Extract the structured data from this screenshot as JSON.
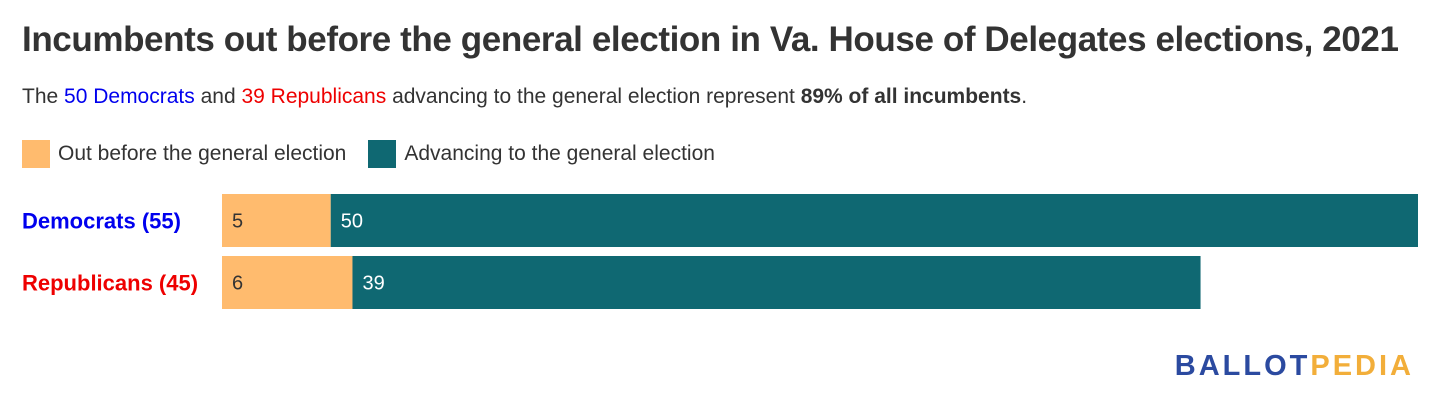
{
  "title": "Incumbents out before the general election in Va. House of Delegates elections, 2021",
  "subtitle": {
    "part1": "The ",
    "dem_text": "50 Democrats",
    "part2": " and ",
    "rep_text": "39 Republicans",
    "part3": " advancing to the general election represent ",
    "bold_text": "89% of all incumbents",
    "part4": "."
  },
  "colors": {
    "out": "#FFBB6E",
    "advancing": "#0F6872",
    "democrat": "#0000EE",
    "republican": "#EE0000",
    "logo_primary": "#2B4AA0",
    "logo_accent": "#F2AE3A"
  },
  "logo": {
    "part1": "BALLOT",
    "part2": "PEDIA"
  },
  "chart_data": {
    "type": "bar",
    "orientation": "horizontal",
    "stacked": true,
    "categories": [
      "Democrats (55)",
      "Republicans (45)"
    ],
    "category_colors": [
      "#0000EE",
      "#EE0000"
    ],
    "series": [
      {
        "name": "Out before the general election",
        "values": [
          5,
          6
        ],
        "color": "#FFBB6E",
        "label_color": "#333333"
      },
      {
        "name": "Advancing to the general election",
        "values": [
          50,
          39
        ],
        "color": "#0F6872",
        "label_color": "#FFFFFF"
      }
    ],
    "xlim": [
      0,
      55
    ],
    "grid": false,
    "legend": "top-left"
  }
}
